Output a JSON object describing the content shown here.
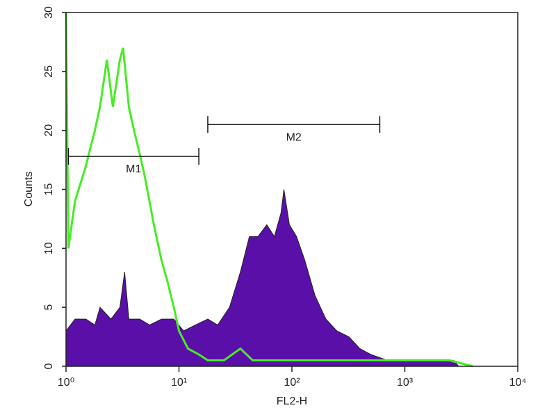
{
  "chart_data": {
    "type": "histogram",
    "xlabel": "FL2-H",
    "ylabel": "Counts",
    "xscale": "log",
    "xlim": [
      1,
      10000
    ],
    "ylim": [
      0,
      30
    ],
    "xticks": [
      {
        "value": 1,
        "label": "10⁰"
      },
      {
        "value": 10,
        "label": "10¹"
      },
      {
        "value": 100,
        "label": "10²"
      },
      {
        "value": 1000,
        "label": "10³"
      },
      {
        "value": 10000,
        "label": "10⁴"
      }
    ],
    "yticks": [
      0,
      5,
      10,
      15,
      20,
      25,
      30
    ],
    "series": [
      {
        "color": "#5a0fa8",
        "fill": true,
        "x": [
          1.0,
          1.2,
          1.5,
          1.8,
          2.0,
          2.5,
          3.0,
          3.3,
          3.6,
          4.5,
          5.5,
          7,
          9,
          11,
          14,
          18,
          22,
          28,
          35,
          42,
          50,
          60,
          70,
          80,
          85,
          95,
          110,
          130,
          160,
          200,
          250,
          320,
          400,
          500,
          700,
          1000,
          1500,
          2000,
          2700,
          3000
        ],
        "values": [
          3,
          4,
          4,
          3.5,
          5,
          4,
          5,
          8,
          4,
          4,
          3.5,
          4,
          4,
          3,
          3.5,
          4,
          3.5,
          5,
          8,
          11,
          11,
          12,
          11,
          13,
          15,
          12,
          11,
          9,
          6,
          4,
          3,
          2.5,
          1.5,
          1,
          0.5,
          0.5,
          0.5,
          0.5,
          0.5,
          0
        ]
      },
      {
        "color": "#44ee22",
        "fill": false,
        "x": [
          1.0,
          1.05,
          1.2,
          1.5,
          1.8,
          2.0,
          2.3,
          2.6,
          3.0,
          3.2,
          3.6,
          4.0,
          4.5,
          5.0,
          6,
          7,
          8,
          9,
          10,
          12,
          15,
          18,
          25,
          35,
          45,
          60,
          100,
          200,
          500,
          1000,
          2500,
          4000
        ],
        "values": [
          30,
          10,
          14,
          17,
          20,
          22,
          26,
          22,
          26,
          27,
          22,
          20,
          18,
          16,
          12,
          9,
          7,
          5,
          3,
          1.5,
          1,
          0.5,
          0.5,
          1.5,
          0.5,
          0.5,
          0.5,
          0.5,
          0.5,
          0.5,
          0.5,
          0
        ]
      }
    ],
    "markers": [
      {
        "label": "M1",
        "range": [
          1.05,
          15
        ],
        "y": 17.8
      },
      {
        "label": "M2",
        "range": [
          18,
          600
        ],
        "y": 20.5
      }
    ]
  }
}
